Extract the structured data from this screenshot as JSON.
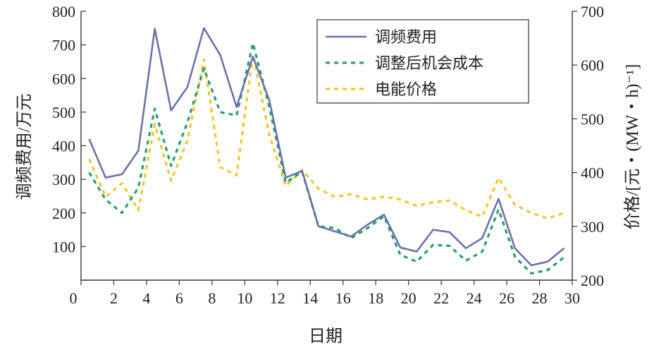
{
  "chart_data": {
    "type": "line",
    "xlabel": "日期",
    "ylabel_left": "调频费用/万元",
    "ylabel_right": "价格/[元・(MW・h)⁻¹]",
    "xlim": [
      0,
      30
    ],
    "ylim_left": [
      0,
      800
    ],
    "ylim_right": [
      200,
      700
    ],
    "xticks": [
      0,
      2,
      4,
      6,
      8,
      10,
      12,
      14,
      16,
      18,
      20,
      22,
      24,
      26,
      28,
      30
    ],
    "yticks_left": [
      100,
      200,
      300,
      400,
      500,
      600,
      700,
      800
    ],
    "yticks_right": [
      200,
      300,
      400,
      500,
      600,
      700
    ],
    "x": [
      0.5,
      1.5,
      2.5,
      3.5,
      4.5,
      5.5,
      6.5,
      7.5,
      8.5,
      9.5,
      10.5,
      11.5,
      12.5,
      13.5,
      14.5,
      15.5,
      16.5,
      17.5,
      18.5,
      19.5,
      20.5,
      21.5,
      22.5,
      23.5,
      24.5,
      25.5,
      26.5,
      27.5,
      28.5,
      29.5
    ],
    "grid": false,
    "legend": "top-right",
    "series": [
      {
        "name": "调频费用",
        "axis": "left",
        "style": "solid",
        "color": "#6b72a8",
        "values": [
          420,
          305,
          315,
          385,
          748,
          505,
          575,
          750,
          670,
          515,
          665,
          535,
          305,
          325,
          160,
          145,
          130,
          165,
          195,
          97,
          85,
          150,
          143,
          95,
          125,
          242,
          95,
          44,
          55,
          95
        ]
      },
      {
        "name": "调整后机会成本",
        "axis": "left",
        "style": "dashed",
        "color": "#2a9d72",
        "values": [
          320,
          240,
          200,
          275,
          510,
          340,
          470,
          630,
          500,
          490,
          705,
          515,
          290,
          323,
          160,
          155,
          125,
          155,
          190,
          75,
          55,
          105,
          102,
          58,
          85,
          210,
          70,
          20,
          30,
          68
        ]
      },
      {
        "name": "电能价格",
        "axis": "right",
        "style": "dashed",
        "color": "#f2c62e",
        "values": [
          425,
          355,
          380,
          330,
          490,
          385,
          460,
          610,
          410,
          395,
          620,
          470,
          375,
          405,
          370,
          355,
          360,
          350,
          355,
          350,
          338,
          345,
          348,
          330,
          318,
          390,
          340,
          325,
          315,
          325
        ]
      }
    ]
  }
}
